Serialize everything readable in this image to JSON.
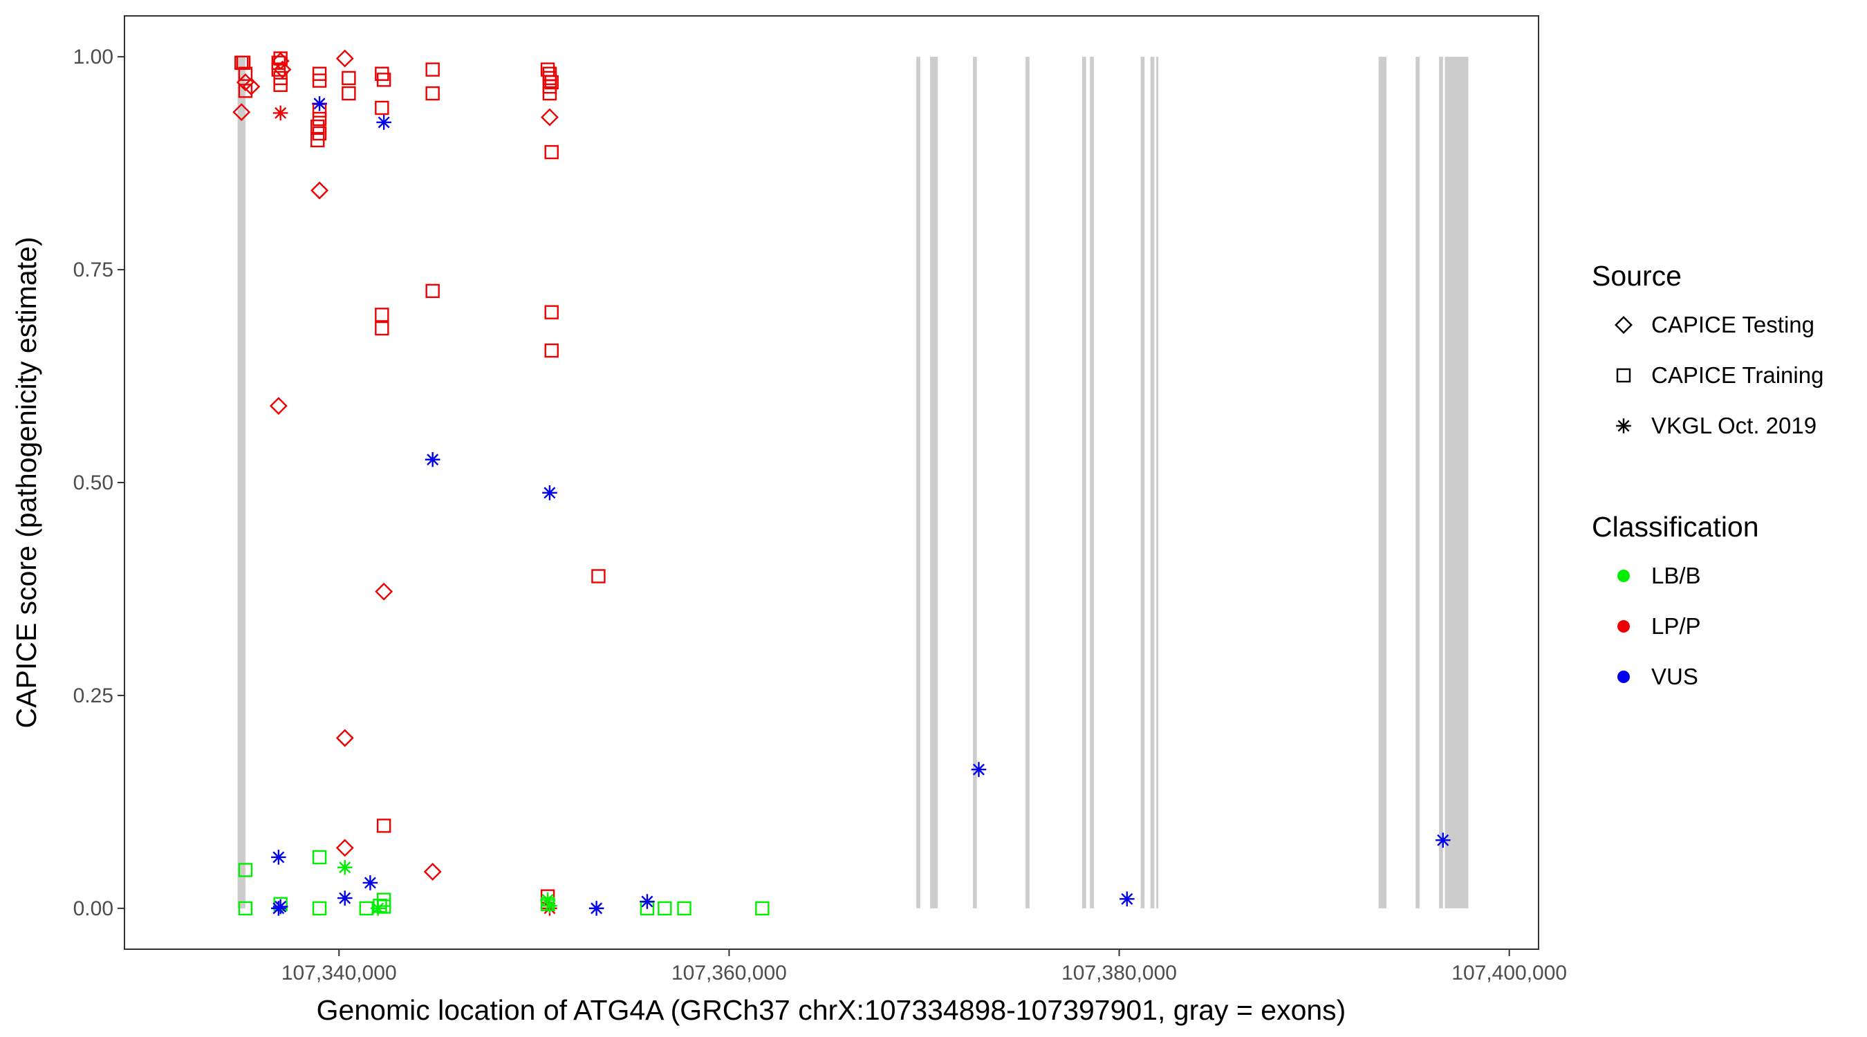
{
  "chart_data": {
    "type": "scatter",
    "xlabel": "Genomic location of ATG4A (GRCh37 chrX:107334898-107397901, gray = exons)",
    "ylabel": "CAPICE score (pathogenicity estimate)",
    "xlim": [
      107329000,
      107401500
    ],
    "ylim": [
      -0.048,
      1.048
    ],
    "x_ticks": [
      107340000,
      107360000,
      107380000,
      107400000
    ],
    "x_tick_labels": [
      "107,340,000",
      "107,360,000",
      "107,380,000",
      "107,400,000"
    ],
    "y_ticks": [
      0,
      0.25,
      0.5,
      0.75,
      1
    ],
    "y_tick_labels": [
      "0.00",
      "0.25",
      "0.50",
      "0.75",
      "1.00"
    ],
    "grid": false,
    "legend_position": "right",
    "legend": {
      "source_title": "Source",
      "source_entries": [
        {
          "label": "CAPICE Testing",
          "shape": "diamond"
        },
        {
          "label": "CAPICE Training",
          "shape": "square"
        },
        {
          "label": "VKGL Oct. 2019",
          "shape": "asterisk"
        }
      ],
      "class_title": "Classification",
      "class_entries": [
        {
          "label": "LB/B",
          "color": "#00ee00"
        },
        {
          "label": "LP/P",
          "color": "#ee0000"
        },
        {
          "label": "VUS",
          "color": "#0000ee"
        }
      ]
    },
    "colors": {
      "LB/B": "#00ee00",
      "LP/P": "#ee0000",
      "VUS": "#0000ee",
      "exon": "#cccccc"
    },
    "exons": [
      [
        107334800,
        107335200
      ],
      [
        107369600,
        107369800
      ],
      [
        107370300,
        107370700
      ],
      [
        107372500,
        107372700
      ],
      [
        107375200,
        107375400
      ],
      [
        107378100,
        107378300
      ],
      [
        107378500,
        107378700
      ],
      [
        107381100,
        107381300
      ],
      [
        107381600,
        107381800
      ],
      [
        107381900,
        107382000
      ],
      [
        107393300,
        107393700
      ],
      [
        107395200,
        107395400
      ],
      [
        107396400,
        107396600
      ],
      [
        107396700,
        107397901
      ]
    ],
    "series": [
      {
        "source": "CAPICE Testing",
        "classification": "LP/P",
        "points": [
          [
            107335000,
            0.935
          ],
          [
            107335200,
            0.97
          ],
          [
            107335500,
            0.965
          ],
          [
            107336900,
            0.59
          ],
          [
            107337100,
            0.985
          ],
          [
            107339000,
            0.843
          ],
          [
            107340300,
            0.998
          ],
          [
            107340300,
            0.2
          ],
          [
            107340300,
            0.071
          ],
          [
            107342300,
            0.372
          ],
          [
            107344800,
            0.043
          ],
          [
            107350800,
            0.929
          ],
          [
            107337000,
            0.995
          ]
        ]
      },
      {
        "source": "CAPICE Training",
        "classification": "LP/P",
        "points": [
          [
            107335000,
            0.993
          ],
          [
            107335100,
            0.993
          ],
          [
            107335200,
            0.98
          ],
          [
            107335200,
            0.96
          ],
          [
            107336900,
            0.993
          ],
          [
            107336900,
            0.985
          ],
          [
            107337000,
            0.998
          ],
          [
            107337000,
            0.975
          ],
          [
            107337000,
            0.967
          ],
          [
            107339000,
            0.98
          ],
          [
            107339000,
            0.972
          ],
          [
            107339000,
            0.937
          ],
          [
            107339000,
            0.927
          ],
          [
            107338900,
            0.918
          ],
          [
            107339000,
            0.91
          ],
          [
            107338900,
            0.902
          ],
          [
            107340500,
            0.975
          ],
          [
            107340500,
            0.957
          ],
          [
            107342200,
            0.98
          ],
          [
            107342300,
            0.973
          ],
          [
            107342200,
            0.94
          ],
          [
            107342200,
            0.697
          ],
          [
            107342200,
            0.681
          ],
          [
            107342300,
            0.097
          ],
          [
            107344800,
            0.985
          ],
          [
            107344800,
            0.957
          ],
          [
            107344800,
            0.725
          ],
          [
            107350700,
            0.985
          ],
          [
            107350800,
            0.98
          ],
          [
            107350800,
            0.975
          ],
          [
            107350900,
            0.97
          ],
          [
            107350800,
            0.965
          ],
          [
            107350800,
            0.957
          ],
          [
            107350900,
            0.888
          ],
          [
            107350900,
            0.7
          ],
          [
            107350900,
            0.655
          ],
          [
            107350700,
            0.014
          ],
          [
            107353300,
            0.39
          ]
        ]
      },
      {
        "source": "VKGL Oct. 2019",
        "classification": "LP/P",
        "points": [
          [
            107337000,
            0.934
          ],
          [
            107350800,
            0.0
          ]
        ]
      },
      {
        "source": "CAPICE Training",
        "classification": "LB/B",
        "points": [
          [
            107335200,
            0.045
          ],
          [
            107335200,
            0.0
          ],
          [
            107337000,
            0.005
          ],
          [
            107339000,
            0.06
          ],
          [
            107339000,
            0.0
          ],
          [
            107341400,
            0.0
          ],
          [
            107342100,
            0.003
          ],
          [
            107342300,
            0.01
          ],
          [
            107342300,
            0.002
          ],
          [
            107350700,
            0.005
          ],
          [
            107355800,
            0.0
          ],
          [
            107356700,
            0.0
          ],
          [
            107357700,
            0.0
          ],
          [
            107361700,
            0.0
          ]
        ]
      },
      {
        "source": "VKGL Oct. 2019",
        "classification": "LB/B",
        "points": [
          [
            107340300,
            0.048
          ],
          [
            107342000,
            0.0
          ],
          [
            107350700,
            0.01
          ],
          [
            107350800,
            0.003
          ]
        ]
      },
      {
        "source": "VKGL Oct. 2019",
        "classification": "VUS",
        "points": [
          [
            107336900,
            0.06
          ],
          [
            107337000,
            0.002
          ],
          [
            107336900,
            0.0
          ],
          [
            107339000,
            0.945
          ],
          [
            107340300,
            0.012
          ],
          [
            107341600,
            0.03
          ],
          [
            107342300,
            0.923
          ],
          [
            107344800,
            0.527
          ],
          [
            107350800,
            0.488
          ],
          [
            107353200,
            0.0
          ],
          [
            107355800,
            0.008
          ],
          [
            107372800,
            0.163
          ],
          [
            107380400,
            0.011
          ],
          [
            107396600,
            0.08
          ]
        ]
      }
    ]
  }
}
